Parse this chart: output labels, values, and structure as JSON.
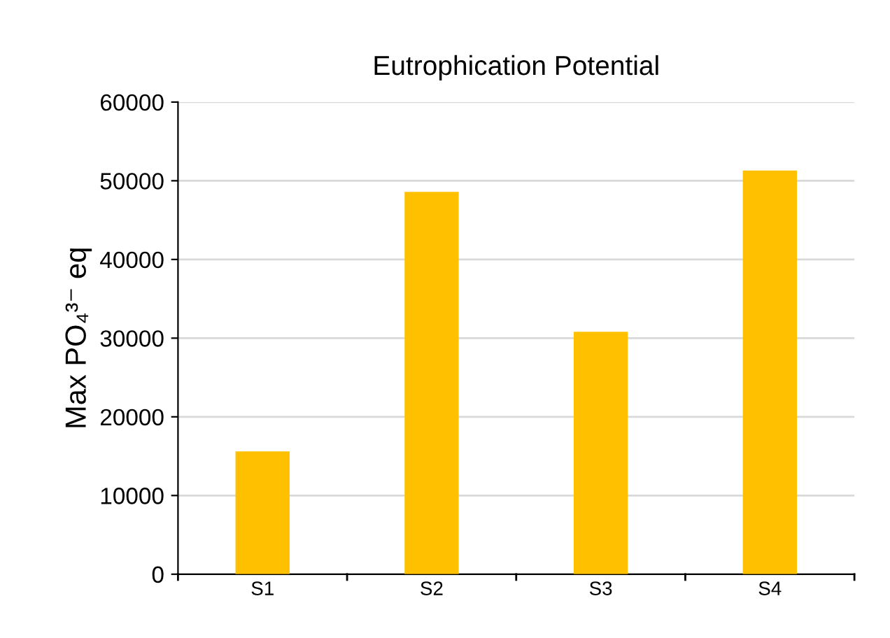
{
  "chart_data": {
    "type": "bar",
    "title": "Eutrophication Potential",
    "ylabel": "Max PO₄³⁻ eq",
    "categories": [
      "S1",
      "S2",
      "S3",
      "S4"
    ],
    "values": [
      15600,
      48600,
      30800,
      51300
    ],
    "color": "#ffc000",
    "ylim": [
      0,
      60000
    ],
    "yticks": [
      0,
      10000,
      20000,
      30000,
      40000,
      50000,
      60000
    ],
    "grid": "y"
  }
}
